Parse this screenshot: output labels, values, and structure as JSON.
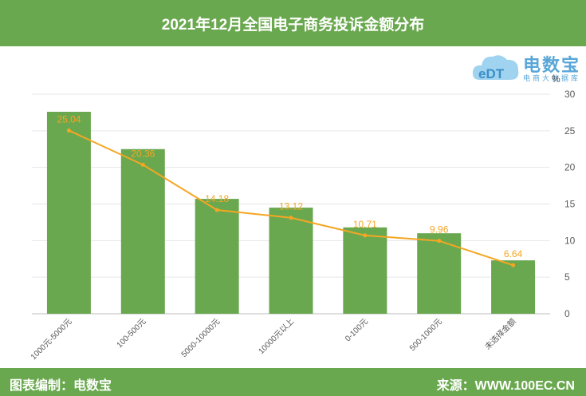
{
  "header": {
    "title": "2021年12月全国电子商务投诉金额分布"
  },
  "footer": {
    "left": "图表编制：电数宝",
    "right": "来源：WWW.100EC.CN"
  },
  "logo": {
    "mark": "eDT",
    "name": "电数宝",
    "sub": "电商大数据库"
  },
  "colors": {
    "bar": "#6aa84f",
    "line": "#f5a623",
    "label": "#f5a623",
    "header": "#6aa84f"
  },
  "chart_data": {
    "type": "bar",
    "categories": [
      "1000元-5000元",
      "100-500元",
      "5000-10000元",
      "10000元以上",
      "0-100元",
      "500-1000元",
      "未选择金额"
    ],
    "series": [
      {
        "type": "bar",
        "values": [
          27.6,
          22.5,
          15.7,
          14.5,
          11.8,
          11.0,
          7.3
        ]
      },
      {
        "type": "line",
        "values": [
          25.04,
          20.36,
          14.18,
          13.12,
          10.71,
          9.96,
          6.64
        ]
      }
    ],
    "data_labels": [
      "25.04",
      "20.36",
      "14.18",
      "13.12",
      "10.71",
      "9.96",
      "6.64"
    ],
    "ylabel": "%",
    "ylim": [
      0,
      30
    ],
    "yticks": [
      0,
      5,
      10,
      15,
      20,
      25,
      30
    ],
    "y_axis_side": "right",
    "grid": true,
    "title": "2021年12月全国电子商务投诉金额分布"
  }
}
